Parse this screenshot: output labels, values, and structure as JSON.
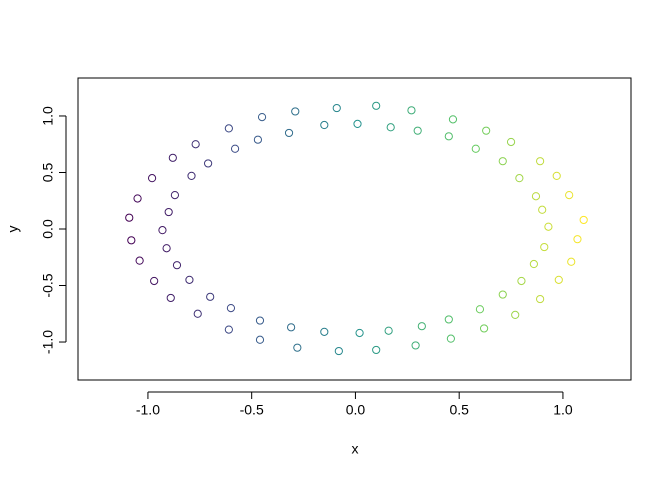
{
  "chart_data": {
    "type": "scatter",
    "x_label": "x",
    "y_label": "y",
    "xlim": [
      -1.337,
      1.328
    ],
    "ylim": [
      -1.336,
      1.336
    ],
    "xticks": [
      {
        "value": -1,
        "label": "-1.0"
      },
      {
        "value": -0.5,
        "label": "-0.5"
      },
      {
        "value": 0,
        "label": "0.0"
      },
      0.5,
      {
        "value": 1,
        "label": "1.0"
      }
    ],
    "yticks": [
      {
        "value": -1,
        "label": "-1.0"
      },
      {
        "value": -0.5,
        "label": "-0.5"
      },
      {
        "value": 0,
        "label": "0.0"
      },
      0.5,
      {
        "value": 1,
        "label": "1.0"
      }
    ],
    "color_scale": [
      "#440154",
      "#3b528b",
      "#21908c",
      "#5dc963",
      "#fde725"
    ],
    "x": [
      0.93,
      1.1,
      0.9,
      1.03,
      0.87,
      0.97,
      0.79,
      0.89,
      0.71,
      0.75,
      0.58,
      0.63,
      0.45,
      0.47,
      0.3,
      0.27,
      0.17,
      0.1,
      0.01,
      -0.09,
      -0.15,
      -0.29,
      -0.32,
      -0.45,
      -0.47,
      -0.61,
      -0.58,
      -0.77,
      -0.71,
      -0.88,
      -0.79,
      -0.98,
      -0.87,
      -1.05,
      -0.9,
      -1.09,
      -0.93,
      -1.08,
      -0.91,
      -1.04,
      -0.86,
      -0.97,
      -0.8,
      -0.89,
      -0.7,
      -0.76,
      -0.6,
      -0.61,
      -0.46,
      -0.46,
      -0.31,
      -0.28,
      -0.15,
      -0.08,
      0.02,
      0.1,
      0.16,
      0.29,
      0.32,
      0.46,
      0.45,
      0.62,
      0.6,
      0.77,
      0.71,
      0.89,
      0.8,
      0.98,
      0.86,
      1.04,
      0.91,
      1.07
    ],
    "values": [
      0.02,
      0.08,
      0.17,
      0.3,
      0.29,
      0.47,
      0.45,
      0.6,
      0.6,
      0.77,
      0.71,
      0.87,
      0.82,
      0.97,
      0.87,
      1.05,
      0.9,
      1.09,
      0.93,
      1.07,
      0.92,
      1.04,
      0.85,
      0.99,
      0.79,
      0.89,
      0.71,
      0.75,
      0.58,
      0.63,
      0.47,
      0.45,
      0.3,
      0.27,
      0.15,
      0.1,
      -0.01,
      -0.1,
      -0.17,
      -0.28,
      -0.32,
      -0.46,
      -0.45,
      -0.61,
      -0.6,
      -0.75,
      -0.7,
      -0.89,
      -0.81,
      -0.98,
      -0.87,
      -1.05,
      -0.91,
      -1.08,
      -0.92,
      -1.07,
      -0.9,
      -1.03,
      -0.86,
      -0.97,
      -0.8,
      -0.88,
      -0.71,
      -0.76,
      -0.58,
      -0.62,
      -0.46,
      -0.45,
      -0.31,
      -0.29,
      -0.16,
      -0.09
    ]
  }
}
